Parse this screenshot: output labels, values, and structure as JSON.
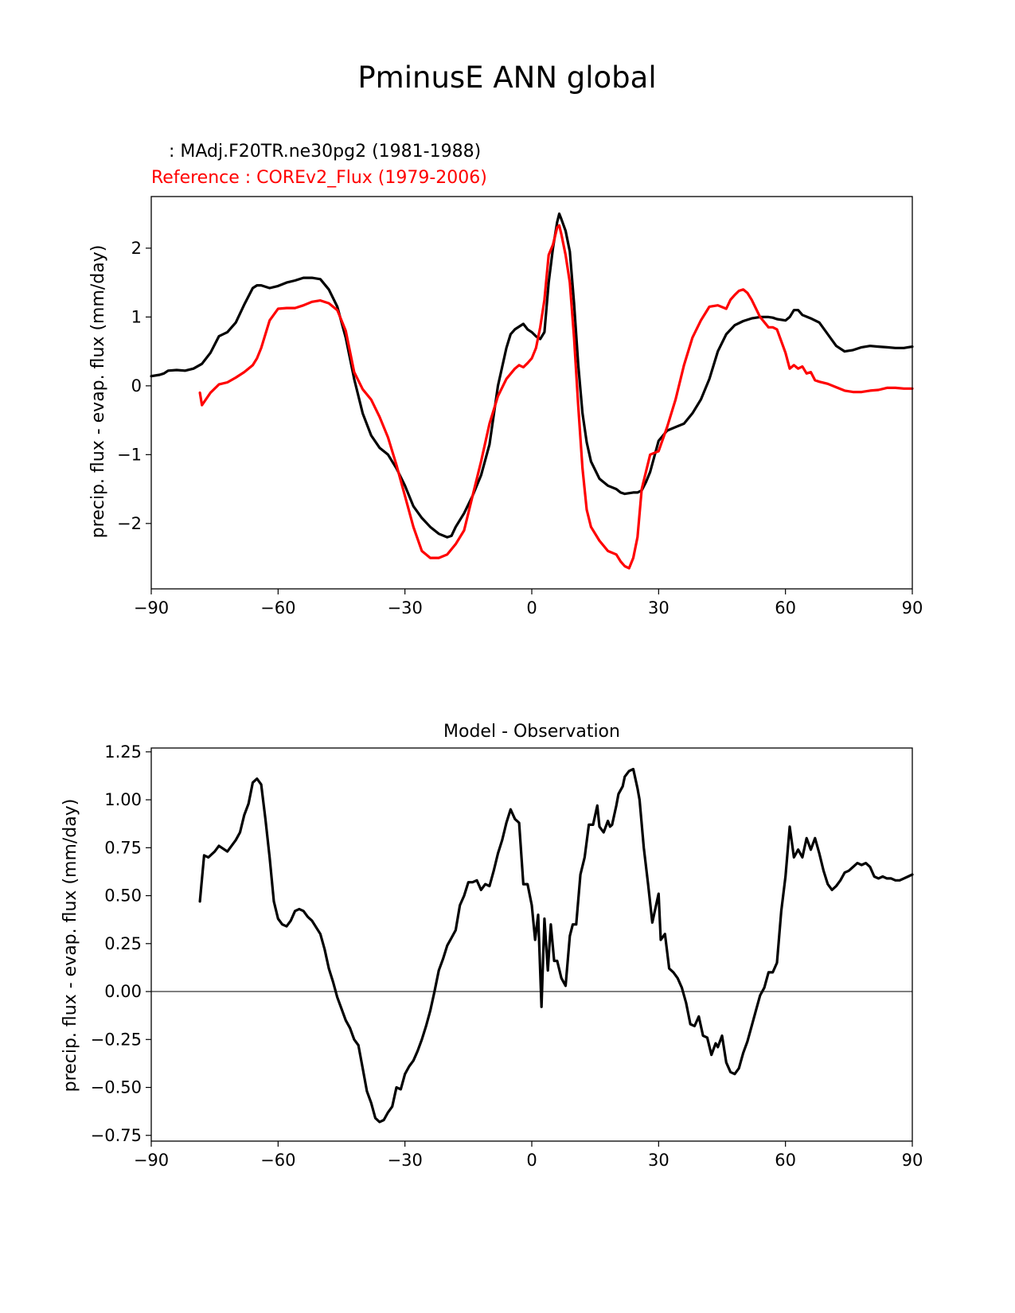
{
  "figure_title": "PminusE ANN global",
  "chart_data": [
    {
      "type": "line",
      "test_label": " : MAdj.F20TR.ne30pg2 (1981-1988)",
      "ref_label": "Reference : COREv2_Flux (1979-2006)",
      "xlabel": "",
      "ylabel": "precip. flux - evap. flux (mm/day)",
      "xlim": [
        -90,
        90
      ],
      "ylim": [
        -2.95,
        2.75
      ],
      "xticks": [
        -90,
        -60,
        -30,
        0,
        30,
        60,
        90
      ],
      "xtick_labels": [
        "−90",
        "−60",
        "−30",
        "0",
        "30",
        "60",
        "90"
      ],
      "yticks": [
        -2,
        -1,
        0,
        1,
        2
      ],
      "ytick_labels": [
        "−2",
        "−1",
        "0",
        "1",
        "2"
      ],
      "series": [
        {
          "name": "Test",
          "color": "#000000",
          "x": [
            -90,
            -88,
            -87,
            -86,
            -84,
            -82,
            -80,
            -78,
            -76,
            -74,
            -73,
            -72,
            -70,
            -68,
            -66,
            -65,
            -64,
            -62,
            -60,
            -58,
            -56,
            -54,
            -52,
            -50,
            -48,
            -46,
            -44,
            -42,
            -40,
            -38,
            -36,
            -34,
            -32,
            -30,
            -28,
            -26,
            -24,
            -22,
            -20,
            -19,
            -18,
            -16,
            -14,
            -12,
            -10,
            -8,
            -6,
            -5,
            -4,
            -2,
            -1,
            0,
            1,
            2,
            3,
            4,
            5,
            6,
            6.5,
            7,
            8,
            9,
            10,
            11,
            12,
            13,
            14,
            16,
            18,
            20,
            21,
            22,
            24,
            25,
            26,
            27,
            28,
            30,
            32,
            34,
            36,
            38,
            40,
            42,
            44,
            46,
            48,
            50,
            52,
            54,
            56,
            57,
            58,
            60,
            61,
            62,
            63,
            64,
            66,
            67,
            68,
            70,
            72,
            74,
            76,
            78,
            80,
            82,
            84,
            86,
            88,
            90
          ],
          "y": [
            0.14,
            0.16,
            0.18,
            0.22,
            0.23,
            0.22,
            0.25,
            0.32,
            0.48,
            0.72,
            0.75,
            0.78,
            0.92,
            1.18,
            1.42,
            1.46,
            1.46,
            1.42,
            1.45,
            1.5,
            1.53,
            1.57,
            1.57,
            1.55,
            1.4,
            1.15,
            0.7,
            0.1,
            -0.4,
            -0.72,
            -0.9,
            -1.0,
            -1.2,
            -1.45,
            -1.75,
            -1.92,
            -2.05,
            -2.15,
            -2.2,
            -2.18,
            -2.05,
            -1.85,
            -1.6,
            -1.3,
            -0.85,
            0.0,
            0.55,
            0.75,
            0.82,
            0.9,
            0.82,
            0.78,
            0.72,
            0.68,
            0.78,
            1.5,
            2.0,
            2.38,
            2.5,
            2.42,
            2.25,
            1.95,
            1.2,
            0.3,
            -0.4,
            -0.82,
            -1.1,
            -1.35,
            -1.45,
            -1.5,
            -1.55,
            -1.57,
            -1.55,
            -1.55,
            -1.52,
            -1.4,
            -1.25,
            -0.8,
            -0.65,
            -0.6,
            -0.55,
            -0.4,
            -0.2,
            0.1,
            0.5,
            0.75,
            0.88,
            0.94,
            0.98,
            1.0,
            1.0,
            0.99,
            0.97,
            0.95,
            1.0,
            1.1,
            1.1,
            1.03,
            0.98,
            0.95,
            0.92,
            0.75,
            0.58,
            0.5,
            0.52,
            0.56,
            0.58,
            0.57,
            0.56,
            0.55,
            0.55,
            0.57
          ]
        },
        {
          "name": "Reference",
          "color": "#ff0000",
          "x": [
            -78.5,
            -78,
            -76,
            -74,
            -72,
            -70,
            -68,
            -66,
            -65,
            -64,
            -62,
            -60,
            -58,
            -56,
            -54,
            -52,
            -50,
            -48,
            -46,
            -44,
            -42,
            -40,
            -38,
            -36,
            -34,
            -32,
            -30,
            -28,
            -26,
            -24,
            -22,
            -20,
            -18,
            -16,
            -14,
            -12,
            -10,
            -8,
            -6,
            -4,
            -3,
            -2,
            -1,
            0,
            1,
            2,
            3,
            4,
            5,
            6,
            6.5,
            7,
            8,
            9,
            10,
            11,
            12,
            13,
            14,
            16,
            18,
            20,
            21,
            22,
            23,
            24,
            25,
            26,
            28,
            30,
            32,
            34,
            36,
            38,
            40,
            42,
            44,
            46,
            47,
            48,
            49,
            50,
            51,
            52,
            54,
            56,
            57,
            58,
            60,
            61,
            62,
            63,
            64,
            65,
            66,
            67,
            68,
            70,
            72,
            74,
            76,
            78,
            80,
            82,
            84,
            86,
            88,
            90
          ],
          "y": [
            -0.1,
            -0.28,
            -0.1,
            0.02,
            0.05,
            0.12,
            0.2,
            0.3,
            0.4,
            0.55,
            0.95,
            1.12,
            1.13,
            1.13,
            1.17,
            1.22,
            1.24,
            1.2,
            1.1,
            0.8,
            0.2,
            -0.05,
            -0.2,
            -0.45,
            -0.75,
            -1.15,
            -1.6,
            -2.05,
            -2.4,
            -2.5,
            -2.5,
            -2.45,
            -2.3,
            -2.1,
            -1.6,
            -1.1,
            -0.55,
            -0.15,
            0.1,
            0.25,
            0.3,
            0.27,
            0.33,
            0.4,
            0.55,
            0.85,
            1.25,
            1.9,
            2.05,
            2.3,
            2.33,
            2.2,
            1.9,
            1.5,
            0.7,
            -0.3,
            -1.2,
            -1.8,
            -2.05,
            -2.25,
            -2.4,
            -2.45,
            -2.55,
            -2.62,
            -2.65,
            -2.5,
            -2.2,
            -1.5,
            -1.0,
            -0.95,
            -0.6,
            -0.2,
            0.3,
            0.7,
            0.95,
            1.15,
            1.17,
            1.12,
            1.25,
            1.32,
            1.38,
            1.4,
            1.35,
            1.25,
            1.0,
            0.85,
            0.85,
            0.82,
            0.48,
            0.25,
            0.3,
            0.25,
            0.28,
            0.18,
            0.2,
            0.08,
            0.06,
            0.03,
            -0.02,
            -0.07,
            -0.09,
            -0.09,
            -0.07,
            -0.06,
            -0.03,
            -0.03,
            -0.04,
            -0.04
          ]
        }
      ]
    },
    {
      "type": "line",
      "title": "Model - Observation",
      "xlabel": "",
      "ylabel": "precip. flux - evap. flux (mm/day)",
      "xlim": [
        -90,
        90
      ],
      "ylim": [
        -0.78,
        1.27
      ],
      "xticks": [
        -90,
        -60,
        -30,
        0,
        30,
        60,
        90
      ],
      "xtick_labels": [
        "−90",
        "−60",
        "−30",
        "0",
        "30",
        "60",
        "90"
      ],
      "yticks": [
        -0.75,
        -0.5,
        -0.25,
        0.0,
        0.25,
        0.5,
        0.75,
        1.0,
        1.25
      ],
      "ytick_labels": [
        "−0.75",
        "−0.50",
        "−0.25",
        "0.00",
        "0.25",
        "0.50",
        "0.75",
        "1.00",
        "1.25"
      ],
      "zero_line_color": "#808080",
      "series": [
        {
          "name": "Model - Observation",
          "color": "#000000",
          "x": [
            -78.5,
            -77.5,
            -76.5,
            -75,
            -74,
            -72,
            -70,
            -69,
            -68,
            -67,
            -66,
            -65,
            -64,
            -63,
            -62,
            -61,
            -60,
            -59,
            -58,
            -57,
            -56,
            -55,
            -54,
            -53,
            -52,
            -50,
            -49,
            -48,
            -47,
            -46,
            -45,
            -44,
            -43,
            -42,
            -41,
            -40,
            -39,
            -38,
            -37,
            -36,
            -35,
            -34,
            -33,
            -32,
            -31,
            -30,
            -29,
            -28,
            -27,
            -26,
            -25,
            -24,
            -23,
            -22,
            -21,
            -20,
            -19,
            -18,
            -17,
            -16,
            -15,
            -14,
            -13,
            -12,
            -11,
            -10,
            -9,
            -8,
            -7,
            -6,
            -5,
            -4,
            -3,
            -2,
            -1,
            0,
            0.8,
            1.5,
            2.3,
            3,
            3.8,
            4.5,
            5.3,
            6,
            7,
            8,
            9,
            9.7,
            10.5,
            11.5,
            12.5,
            13.5,
            14.5,
            15.5,
            16,
            17,
            18,
            18.5,
            19,
            20,
            20.5,
            21.5,
            22,
            23,
            24,
            25,
            25.5,
            26.5,
            27.5,
            28.5,
            30,
            30.5,
            31.5,
            32.5,
            33.5,
            34.5,
            35.5,
            36.5,
            37.5,
            38.5,
            39.5,
            40.5,
            41.5,
            42.5,
            43.5,
            44,
            45,
            46,
            47,
            48,
            49,
            50,
            51,
            52,
            53,
            54,
            55,
            56,
            57,
            58,
            59,
            60,
            61,
            62,
            63,
            64,
            65,
            66,
            67,
            68,
            69,
            70,
            71,
            72,
            73,
            74,
            75,
            76,
            77,
            78,
            79,
            80,
            81,
            82,
            83,
            84,
            85,
            86,
            87,
            88,
            89,
            90
          ],
          "y": [
            0.47,
            0.71,
            0.7,
            0.73,
            0.76,
            0.73,
            0.79,
            0.83,
            0.92,
            0.98,
            1.09,
            1.11,
            1.08,
            0.9,
            0.7,
            0.47,
            0.38,
            0.35,
            0.34,
            0.37,
            0.42,
            0.43,
            0.42,
            0.39,
            0.37,
            0.3,
            0.22,
            0.12,
            0.05,
            -0.03,
            -0.09,
            -0.15,
            -0.19,
            -0.25,
            -0.28,
            -0.4,
            -0.52,
            -0.58,
            -0.66,
            -0.68,
            -0.67,
            -0.63,
            -0.6,
            -0.5,
            -0.51,
            -0.43,
            -0.39,
            -0.36,
            -0.31,
            -0.25,
            -0.18,
            -0.1,
            0.0,
            0.11,
            0.17,
            0.24,
            0.28,
            0.32,
            0.45,
            0.5,
            0.57,
            0.57,
            0.58,
            0.53,
            0.56,
            0.55,
            0.63,
            0.72,
            0.79,
            0.88,
            0.95,
            0.9,
            0.88,
            0.56,
            0.56,
            0.45,
            0.27,
            0.4,
            -0.08,
            0.38,
            0.11,
            0.35,
            0.16,
            0.16,
            0.07,
            0.03,
            0.29,
            0.35,
            0.35,
            0.61,
            0.7,
            0.87,
            0.87,
            0.97,
            0.86,
            0.83,
            0.89,
            0.86,
            0.87,
            0.97,
            1.03,
            1.07,
            1.12,
            1.15,
            1.16,
            1.06,
            1.0,
            0.75,
            0.56,
            0.36,
            0.51,
            0.27,
            0.3,
            0.12,
            0.1,
            0.07,
            0.02,
            -0.06,
            -0.17,
            -0.18,
            -0.13,
            -0.23,
            -0.24,
            -0.33,
            -0.27,
            -0.29,
            -0.23,
            -0.37,
            -0.42,
            -0.43,
            -0.4,
            -0.32,
            -0.26,
            -0.18,
            -0.1,
            -0.02,
            0.02,
            0.1,
            0.1,
            0.15,
            0.42,
            0.6,
            0.86,
            0.7,
            0.74,
            0.7,
            0.8,
            0.74,
            0.8,
            0.72,
            0.63,
            0.56,
            0.53,
            0.55,
            0.58,
            0.62,
            0.63,
            0.65,
            0.67,
            0.66,
            0.67,
            0.65,
            0.6,
            0.59,
            0.6,
            0.59,
            0.59,
            0.58,
            0.58,
            0.59,
            0.6,
            0.61
          ]
        }
      ]
    }
  ]
}
